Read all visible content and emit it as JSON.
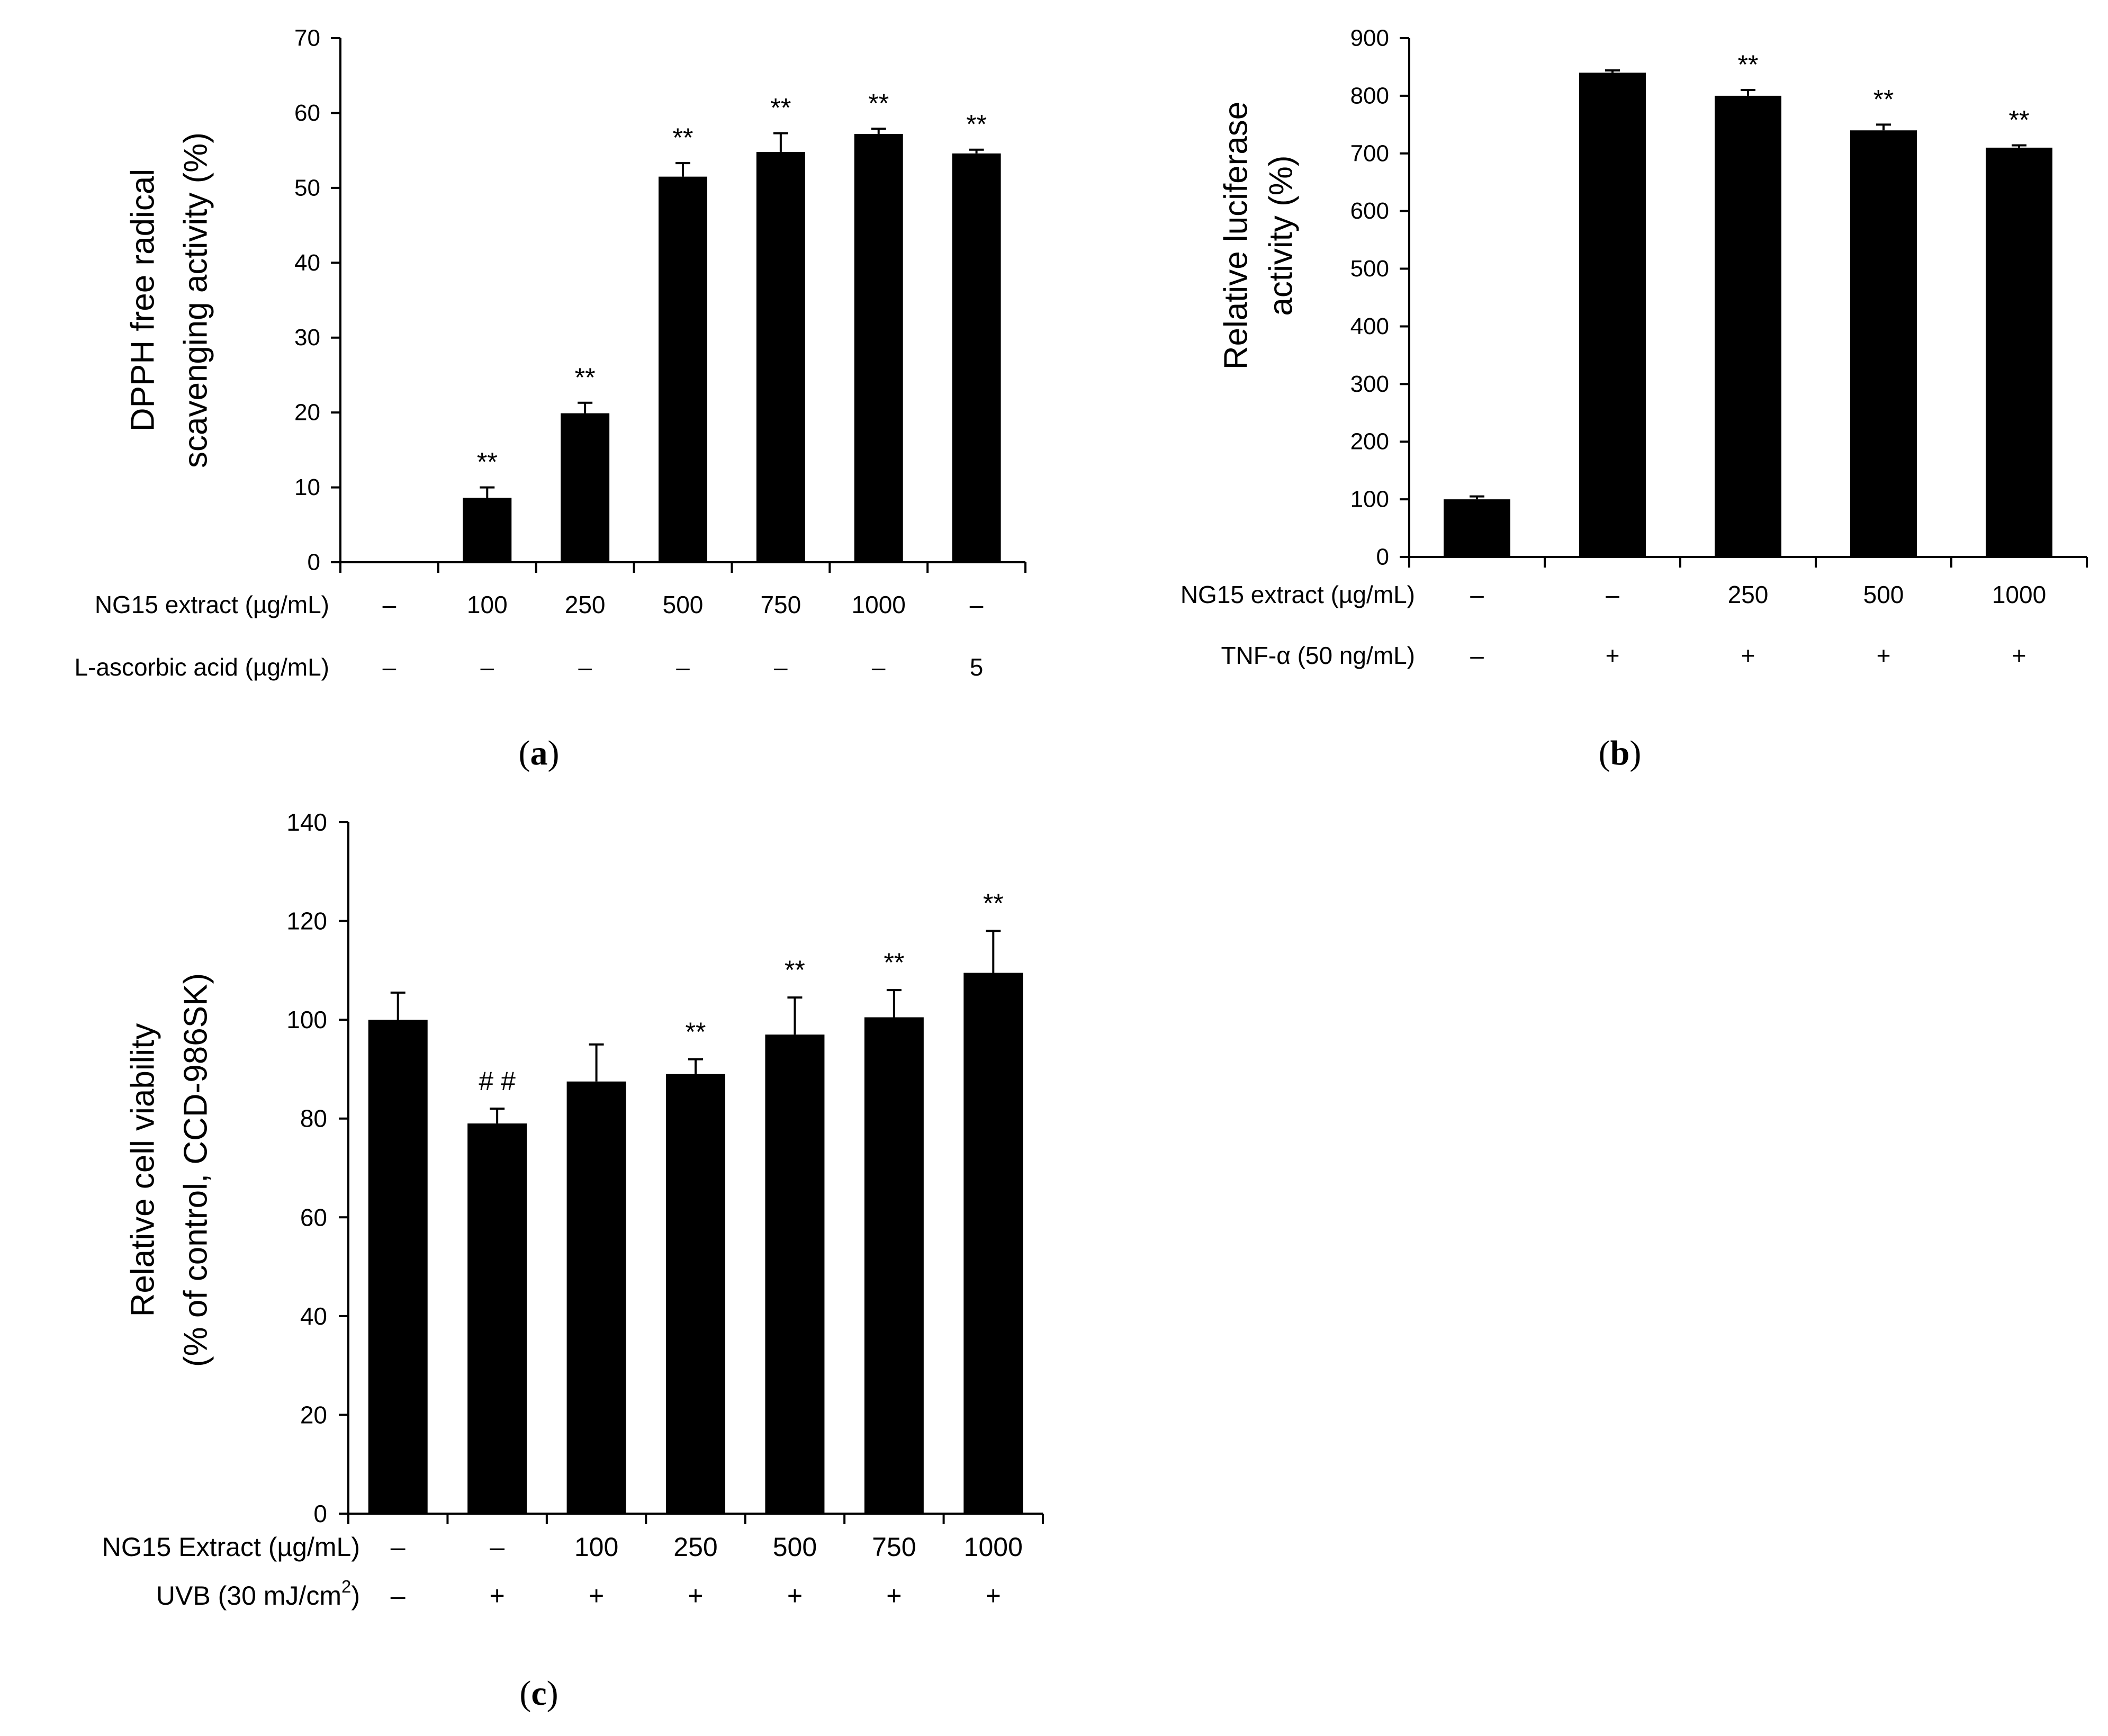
{
  "colors": {
    "bar": "#000000",
    "axis": "#000000",
    "background": "#ffffff"
  },
  "chart_data": [
    {
      "panel": "(a)",
      "panel_letter": "a",
      "type": "bar",
      "ylabel_lines": [
        "DPPH free radical",
        "scavenging activity (%)"
      ],
      "ylim": [
        0,
        70
      ],
      "yticks": [
        0,
        10,
        20,
        30,
        40,
        50,
        60,
        70
      ],
      "values": [
        0,
        8.6,
        19.9,
        51.5,
        54.8,
        57.2,
        54.6
      ],
      "errors": [
        0,
        1.4,
        1.4,
        1.8,
        2.5,
        0.7,
        0.5
      ],
      "annotations": [
        "",
        "**",
        "**",
        "**",
        "**",
        "**",
        "**"
      ],
      "category_rows": [
        {
          "label": "NG15 extract (µg/mL)",
          "values": [
            "–",
            "100",
            "250",
            "500",
            "750",
            "1000",
            "–"
          ]
        },
        {
          "label": "L-ascorbic acid (µg/mL)",
          "values": [
            "–",
            "–",
            "–",
            "–",
            "–",
            "–",
            "5"
          ]
        }
      ]
    },
    {
      "panel": "(b)",
      "panel_letter": "b",
      "type": "bar",
      "ylabel_lines": [
        "Relative luciferase",
        "activity (%)"
      ],
      "ylim": [
        0,
        900
      ],
      "yticks": [
        0,
        100,
        200,
        300,
        400,
        500,
        600,
        700,
        800,
        900
      ],
      "values": [
        100,
        840,
        800,
        740,
        710
      ],
      "errors": [
        5,
        4,
        10,
        10,
        4
      ],
      "annotations": [
        "",
        "",
        "**",
        "**",
        "**"
      ],
      "category_rows": [
        {
          "label": "NG15 extract (µg/mL)",
          "values": [
            "–",
            "–",
            "250",
            "500",
            "1000"
          ]
        },
        {
          "label": "TNF-α (50 ng/mL)",
          "values": [
            "–",
            "+",
            "+",
            "+",
            "+"
          ]
        }
      ]
    },
    {
      "panel": "(c)",
      "panel_letter": "c",
      "type": "bar",
      "ylabel_lines": [
        "Relative cell viability",
        "(% of control, CCD-986SK)"
      ],
      "ylim": [
        0,
        140
      ],
      "yticks": [
        0,
        20,
        40,
        60,
        80,
        100,
        120,
        140
      ],
      "values": [
        100,
        79,
        87.5,
        89,
        97,
        100.5,
        109.5
      ],
      "errors": [
        5.5,
        3,
        7.5,
        3,
        7.5,
        5.5,
        8.5
      ],
      "annotations": [
        "",
        "# #",
        "",
        "**",
        "**",
        "**",
        "**"
      ],
      "category_rows": [
        {
          "label": "NG15 Extract (µg/mL)",
          "values": [
            "–",
            "–",
            "100",
            "250",
            "500",
            "750",
            "1000"
          ]
        },
        {
          "label": "UVB (30 mJ/cm",
          "label_sup": "2",
          "label_tail": ")",
          "values": [
            "–",
            "+",
            "+",
            "+",
            "+",
            "+",
            "+"
          ]
        }
      ]
    }
  ]
}
